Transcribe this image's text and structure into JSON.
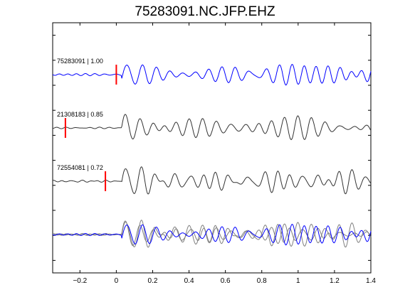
{
  "chart_data": {
    "type": "line",
    "title": "75283091.NC.JFP.EHZ",
    "xlabel": "",
    "ylabel": "",
    "xlim": [
      -0.35,
      1.4
    ],
    "xticks": [
      -0.2,
      0,
      0.2,
      0.4,
      0.6,
      0.8,
      1,
      1.2,
      1.4
    ],
    "xtick_labels": [
      "−0.2",
      "0",
      "0.2",
      "0.4",
      "0.6",
      "0.8",
      "1",
      "1.2",
      "1.4"
    ],
    "y_ticks_unlabeled": 10,
    "grid": false,
    "legend": "none",
    "series": [
      {
        "label": "75283091 | 1.00",
        "color": "#0000ff",
        "pick_time": 0.0,
        "pick_color": "#ff0000",
        "onset": 0.03,
        "seed": 1,
        "amplitude": 0.55
      },
      {
        "label": "21308183 | 0.85",
        "color": "#333333",
        "pick_time": -0.28,
        "pick_color": "#ff0000",
        "onset": 0.03,
        "seed": 2,
        "amplitude": 0.6
      },
      {
        "label": "72554081 | 0.72",
        "color": "#333333",
        "pick_time": -0.06,
        "pick_color": "#ff0000",
        "onset": 0.03,
        "seed": 3,
        "amplitude": 0.6
      }
    ],
    "overlay": {
      "description": "aligned stack of all traces",
      "colors": [
        "#808080",
        "#808080",
        "#0000ff"
      ]
    }
  }
}
